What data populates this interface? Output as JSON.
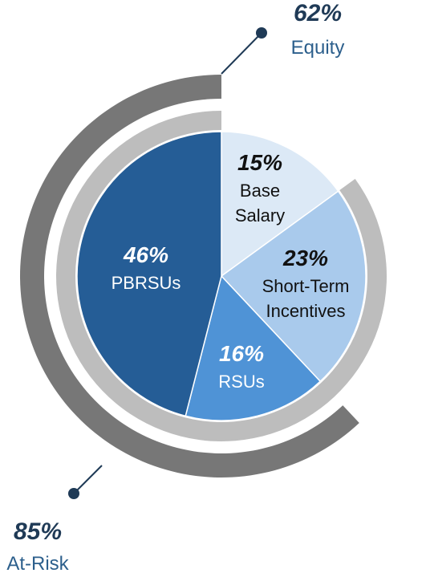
{
  "chart_data": {
    "type": "pie",
    "slices": [
      {
        "percent": "15%",
        "value": 15,
        "label_lines": [
          "Base",
          "Salary"
        ],
        "color": "#dce9f6",
        "text_color": "#111111"
      },
      {
        "percent": "23%",
        "value": 23,
        "label_lines": [
          "Short-Term",
          "Incentives"
        ],
        "color": "#a9caec",
        "text_color": "#111111"
      },
      {
        "percent": "16%",
        "value": 16,
        "label_lines": [
          "RSUs"
        ],
        "color": "#4f93d6",
        "text_color": "#ffffff"
      },
      {
        "percent": "46%",
        "value": 46,
        "label_lines": [
          "PBRSUs"
        ],
        "color": "#255d96",
        "text_color": "#ffffff"
      }
    ],
    "rings": [
      {
        "name": "At-Risk",
        "percent": "85%",
        "value": 85,
        "color": "#bdbdbd"
      },
      {
        "name": "Equity",
        "percent": "62%",
        "value": 62,
        "color": "#777777"
      }
    ]
  },
  "callouts": {
    "equity": {
      "percent": "62%",
      "label": "Equity"
    },
    "at_risk": {
      "percent": "85%",
      "label": "At-Risk"
    }
  },
  "colors": {
    "callout_text": "#1f3a56",
    "callout_label": "#2c5f8c",
    "leader": "#1f3a56"
  }
}
